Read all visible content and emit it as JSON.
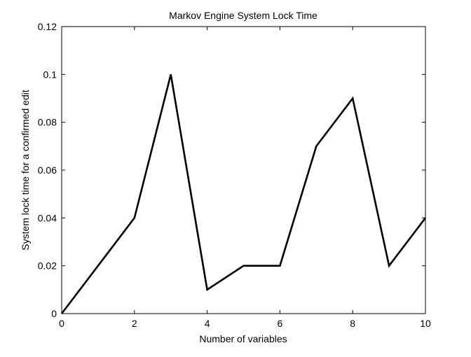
{
  "chart_data": {
    "type": "line",
    "title": "Markov Engine System Lock Time",
    "xlabel": "Number of variables",
    "ylabel": "System lock time for a confirmed edit",
    "xlim": [
      0,
      10
    ],
    "ylim": [
      0,
      0.12
    ],
    "xticks": [
      0,
      2,
      4,
      6,
      8,
      10
    ],
    "xtick_labels": [
      "0",
      "2",
      "4",
      "6",
      "8",
      "10"
    ],
    "yticks": [
      0,
      0.02,
      0.04,
      0.06,
      0.08,
      0.1,
      0.12
    ],
    "ytick_labels": [
      "0",
      "0.02",
      "0.04",
      "0.06",
      "0.08",
      "0.1",
      "0.12"
    ],
    "grid": false,
    "series": [
      {
        "x": [
          0,
          2,
          3,
          4,
          5,
          6,
          7,
          8,
          9,
          10
        ],
        "y": [
          0,
          0.04,
          0.1,
          0.01,
          0.02,
          0.02,
          0.07,
          0.09,
          0.02,
          0.04
        ],
        "color": "#000000"
      }
    ]
  }
}
